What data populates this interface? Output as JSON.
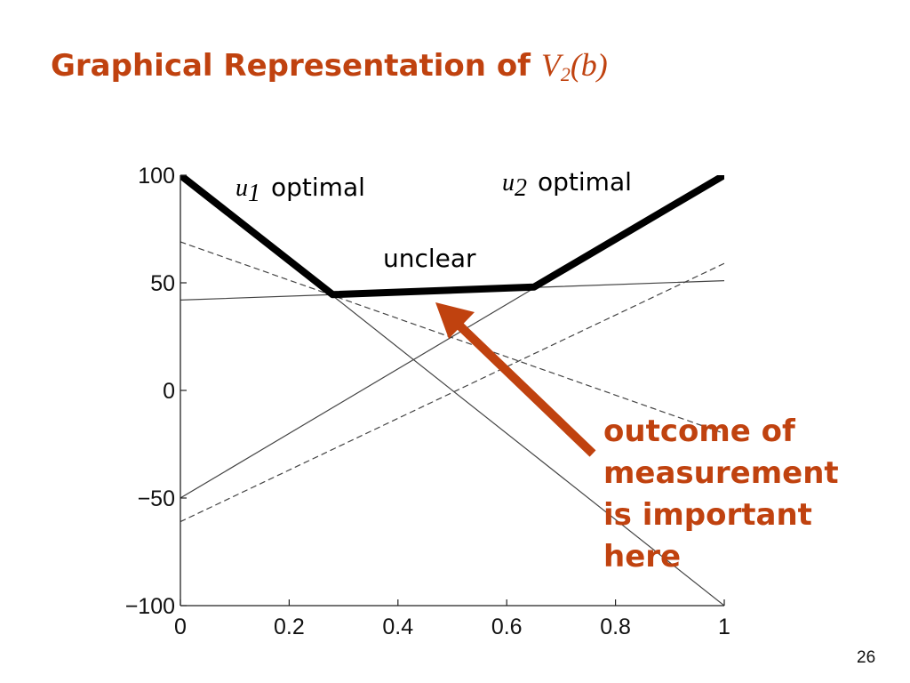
{
  "slide": {
    "title_text": "Graphical Representation of ",
    "title_math_main": "V",
    "title_math_sub": "2",
    "title_math_arg": "(b)",
    "page_number": "26"
  },
  "annotations": {
    "u1_symbol": "u",
    "u1_sub": "1",
    "u1_text": "optimal",
    "u2_symbol": "u",
    "u2_sub": "2",
    "u2_text": "optimal",
    "unclear_text": "unclear",
    "callout_lines": [
      "outcome of",
      "measurement",
      "is important",
      "here"
    ]
  },
  "colors": {
    "accent": "#c0420f",
    "value_function": "#000000",
    "line": "#444444"
  },
  "chart_data": {
    "type": "line",
    "title": "",
    "xlabel": "",
    "ylabel": "",
    "xlim": [
      0,
      1
    ],
    "ylim": [
      -100,
      100
    ],
    "xticks": [
      0,
      0.2,
      0.4,
      0.6,
      0.8,
      1
    ],
    "xtick_labels": [
      "0",
      "0.2",
      "0.4",
      "0.6",
      "0.8",
      "1"
    ],
    "yticks": [
      100,
      50,
      0,
      -50,
      -100
    ],
    "ytick_labels": [
      "100",
      "50",
      "0",
      "−50",
      "−100"
    ],
    "grid": false,
    "series": [
      {
        "x": [
          0,
          1
        ],
        "y": [
          100,
          -100
        ],
        "style": "solid"
      },
      {
        "x": [
          0,
          1
        ],
        "y": [
          -50,
          100
        ],
        "style": "solid"
      },
      {
        "x": [
          0,
          1
        ],
        "y": [
          42,
          51
        ],
        "style": "solid"
      },
      {
        "x": [
          0,
          1
        ],
        "y": [
          69,
          -20
        ],
        "style": "dashed"
      },
      {
        "x": [
          0,
          1
        ],
        "y": [
          -61,
          59
        ],
        "style": "dashed"
      },
      {
        "x": [
          0,
          0.28,
          0.65,
          1
        ],
        "y": [
          100,
          44.5,
          48,
          100
        ],
        "style": "bold"
      }
    ]
  }
}
